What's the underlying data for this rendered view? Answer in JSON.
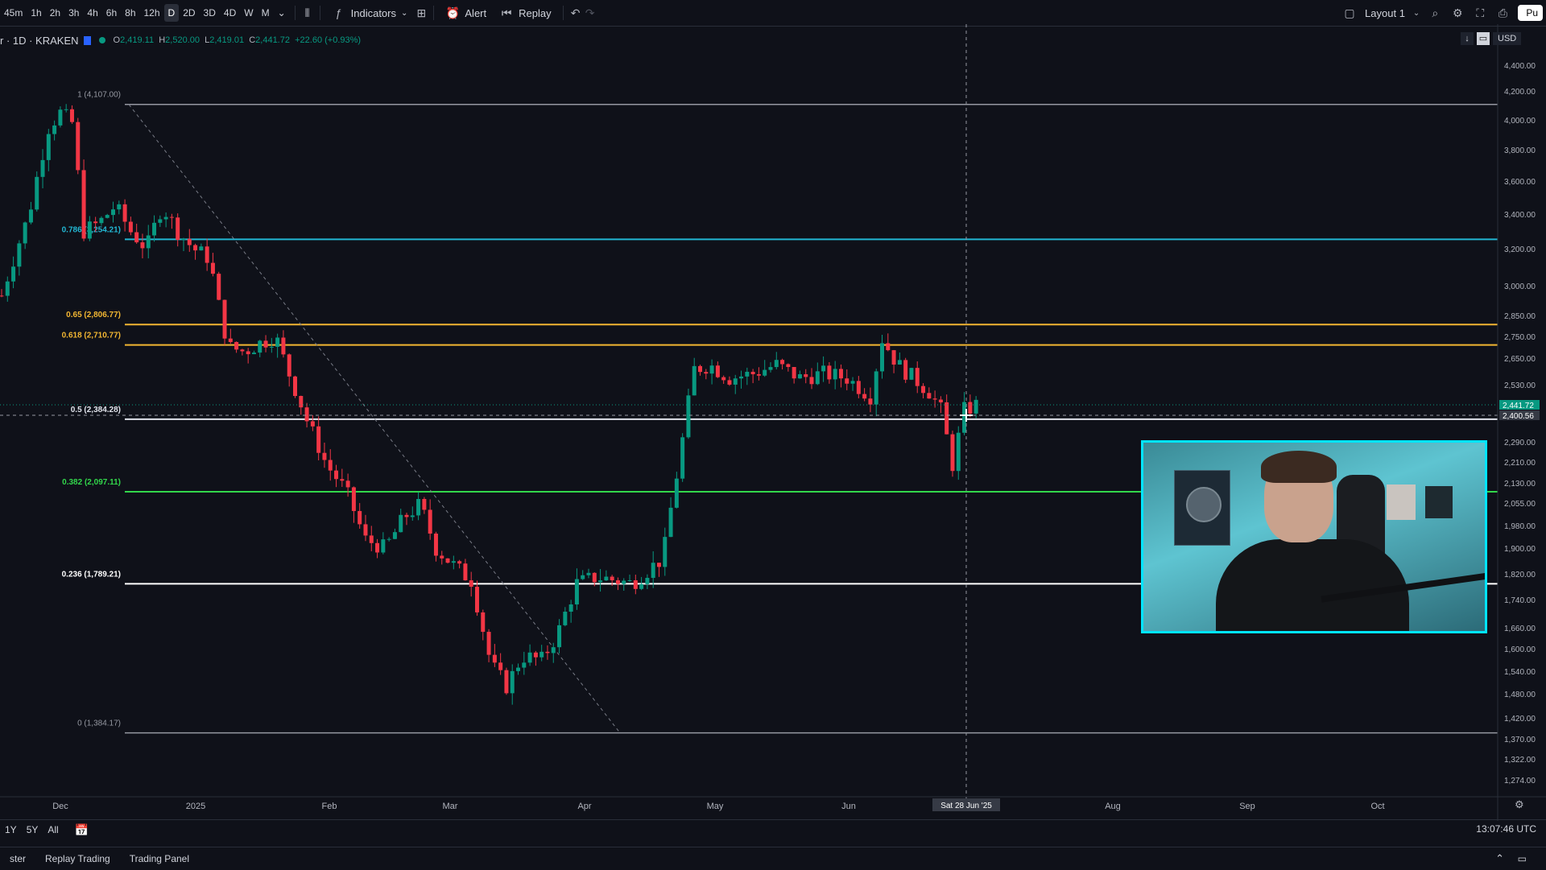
{
  "toolbar": {
    "timeframes": [
      "45m",
      "1h",
      "2h",
      "3h",
      "4h",
      "6h",
      "8h",
      "12h",
      "D",
      "2D",
      "3D",
      "4D",
      "W",
      "M"
    ],
    "active_timeframe": "D",
    "indicators_label": "Indicators",
    "alert_label": "Alert",
    "replay_label": "Replay",
    "layout_label": "Layout 1",
    "publish_label": "Pu"
  },
  "legend": {
    "symbol": "r · 1D · KRAKEN",
    "open_label": "O",
    "open": "2,419.11",
    "high_label": "H",
    "high": "2,520.00",
    "low_label": "L",
    "low": "2,419.01",
    "close_label": "C",
    "close": "2,441.72",
    "change": "+22.60 (+0.93%)",
    "currency": "USD"
  },
  "chart_data": {
    "type": "candlestick",
    "price_axis_labels": [
      "4,400.00",
      "4,200.00",
      "4,000.00",
      "3,800.00",
      "3,600.00",
      "3,400.00",
      "3,200.00",
      "3,000.00",
      "2,850.00",
      "2,750.00",
      "2,650.00",
      "2,530.00",
      "2,290.00",
      "2,210.00",
      "2,130.00",
      "2,055.00",
      "1,980.00",
      "1,900.00",
      "1,820.00",
      "1,740.00",
      "1,660.00",
      "1,600.00",
      "1,540.00",
      "1,480.00",
      "1,420.00",
      "1,370.00",
      "1,322.00",
      "1,274.00"
    ],
    "current_price_label": "2,441.72",
    "crosshair_price_label": "2,400.56",
    "time_labels": [
      "Dec",
      "2025",
      "Feb",
      "Mar",
      "Apr",
      "May",
      "Jun",
      "Aug",
      "Sep",
      "Oct"
    ],
    "crosshair_time_label": "Sat 28 Jun '25",
    "fib_levels": [
      {
        "label": "1 (4,107.00)",
        "price": 4107.0,
        "color": "#9598a1"
      },
      {
        "label": "0.786 (3,254.21)",
        "price": 3254.21,
        "color": "#22b7d3"
      },
      {
        "label": "0.65 (2,806.77)",
        "price": 2806.77,
        "color": "#f2b632"
      },
      {
        "label": "0.618 (2,710.77)",
        "price": 2710.77,
        "color": "#f2b632"
      },
      {
        "label": "0.5 (2,384.28)",
        "price": 2384.28,
        "color": "#e0e3eb"
      },
      {
        "label": "0.382 (2,097.11)",
        "price": 2097.11,
        "color": "#32d74b"
      },
      {
        "label": "0.236 (1,789.21)",
        "price": 1789.21,
        "color": "#ffffff"
      },
      {
        "label": "0 (1,384.17)",
        "price": 1384.17,
        "color": "#9598a1"
      }
    ],
    "up_color": "#089981",
    "down_color": "#f23645"
  },
  "range_bar": {
    "ranges": [
      "1Y",
      "5Y",
      "All"
    ],
    "time": "13:07:46 UTC"
  },
  "bottom_tabs": [
    "ster",
    "Replay Trading",
    "Trading Panel"
  ]
}
